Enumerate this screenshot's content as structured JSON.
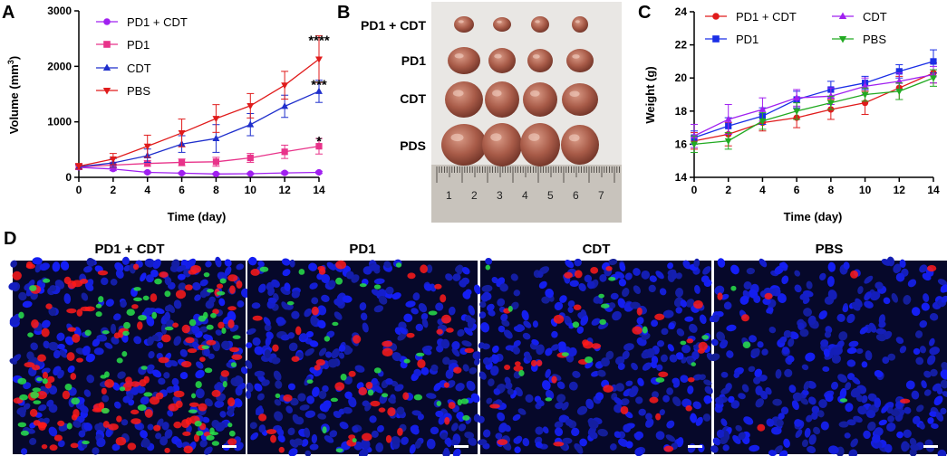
{
  "panels": {
    "a_letter": "A",
    "b_letter": "B",
    "c_letter": "C",
    "d_letter": "D"
  },
  "colors": {
    "pd1_cdt_a": "#a020f0",
    "pd1_a": "#e8338a",
    "cdt_a": "#1f2fcc",
    "pbs_a": "#e01b1b",
    "pd1_cdt_c": "#e01b1b",
    "pd1_c": "#1a2ee6",
    "cdt_c": "#a020f0",
    "pbs_c": "#22aa22"
  },
  "photo": {
    "row_labels": [
      "PD1 + CDT",
      "PD1",
      "CDT",
      "PDS"
    ],
    "ruler_numbers": [
      "1",
      "2",
      "3",
      "4",
      "5",
      "6",
      "7"
    ]
  },
  "micro": {
    "titles": [
      "PD1 + CDT",
      "PD1",
      "CDT",
      "PBS"
    ],
    "red_density": [
      0.9,
      0.35,
      0.28,
      0.05
    ],
    "green_density": [
      0.75,
      0.3,
      0.18,
      0.03
    ]
  },
  "chart_data": [
    {
      "type": "line",
      "panel": "A",
      "xlabel": "Time (day)",
      "ylabel_main": "Volume (mm",
      "ylabel_sup": "3",
      "ylabel_end": ")",
      "xlim": [
        0,
        14
      ],
      "ylim": [
        0,
        3000
      ],
      "xticks": [
        0,
        2,
        4,
        6,
        8,
        10,
        12,
        14
      ],
      "yticks": [
        0,
        1000,
        2000,
        3000
      ],
      "x": [
        0,
        2,
        4,
        6,
        8,
        10,
        12,
        14
      ],
      "legend_position": "top-left",
      "series": [
        {
          "name": "PD1 + CDT",
          "marker": "circle",
          "values": [
            180,
            150,
            90,
            75,
            60,
            65,
            80,
            90
          ],
          "errors": [
            40,
            30,
            20,
            15,
            15,
            15,
            20,
            20
          ]
        },
        {
          "name": "PD1",
          "marker": "square",
          "values": [
            190,
            220,
            250,
            270,
            280,
            350,
            460,
            560
          ],
          "errors": [
            40,
            50,
            50,
            60,
            80,
            80,
            120,
            140
          ]
        },
        {
          "name": "CDT",
          "marker": "triangle-up",
          "values": [
            190,
            260,
            390,
            600,
            700,
            950,
            1280,
            1550
          ],
          "errors": [
            40,
            80,
            120,
            150,
            250,
            200,
            200,
            200
          ]
        },
        {
          "name": "PBS",
          "marker": "triangle-down",
          "values": [
            200,
            330,
            560,
            800,
            1060,
            1290,
            1660,
            2130
          ],
          "errors": [
            50,
            100,
            200,
            250,
            250,
            220,
            250,
            420
          ]
        }
      ],
      "annotations": [
        {
          "text": "****",
          "x": 14,
          "y": 2520
        },
        {
          "text": "***",
          "x": 14,
          "y": 1720
        },
        {
          "text": "*",
          "x": 14,
          "y": 700
        }
      ]
    },
    {
      "type": "line",
      "panel": "C",
      "xlabel": "Time (day)",
      "ylabel": "Weight (g)",
      "xlim": [
        0,
        14
      ],
      "ylim": [
        14,
        24
      ],
      "xticks": [
        0,
        2,
        4,
        6,
        8,
        10,
        12,
        14
      ],
      "yticks": [
        14,
        16,
        18,
        20,
        22,
        24
      ],
      "x": [
        0,
        2,
        4,
        6,
        8,
        10,
        12,
        14
      ],
      "legend_position": "top-center",
      "series": [
        {
          "name": "PD1 + CDT",
          "marker": "circle",
          "values": [
            16.2,
            16.6,
            17.3,
            17.6,
            18.1,
            18.5,
            19.4,
            20.3
          ],
          "errors": [
            0.5,
            0.7,
            0.5,
            0.6,
            0.6,
            0.7,
            0.7,
            0.6
          ]
        },
        {
          "name": "PD1",
          "marker": "square",
          "values": [
            16.4,
            17.1,
            17.7,
            18.7,
            19.3,
            19.7,
            20.4,
            21.0
          ],
          "errors": [
            0.4,
            0.5,
            0.5,
            0.5,
            0.5,
            0.4,
            0.4,
            0.7
          ]
        },
        {
          "name": "CDT",
          "marker": "triangle-up",
          "values": [
            16.5,
            17.5,
            18.1,
            18.8,
            18.9,
            19.5,
            19.8,
            20.2
          ],
          "errors": [
            0.7,
            0.9,
            0.7,
            0.5,
            0.5,
            0.5,
            0.5,
            0.5
          ]
        },
        {
          "name": "PBS",
          "marker": "triangle-down",
          "values": [
            16.0,
            16.2,
            17.4,
            18.0,
            18.5,
            19.0,
            19.2,
            20.0
          ],
          "errors": [
            0.5,
            0.5,
            0.5,
            0.5,
            0.4,
            0.4,
            0.5,
            0.5
          ]
        }
      ]
    }
  ]
}
